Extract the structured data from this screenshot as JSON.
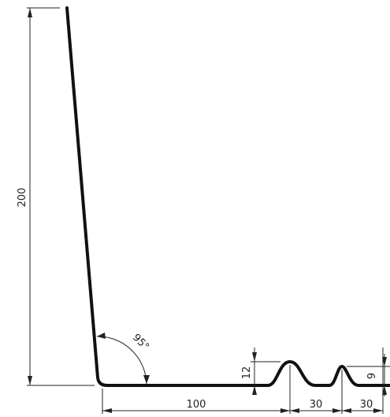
{
  "dimensions": {
    "height": "200",
    "angle": "95°",
    "base_length": "100",
    "pitch_1": "30",
    "pitch_2": "30",
    "ridge_height_1": "12",
    "ridge_height_2": "9"
  }
}
